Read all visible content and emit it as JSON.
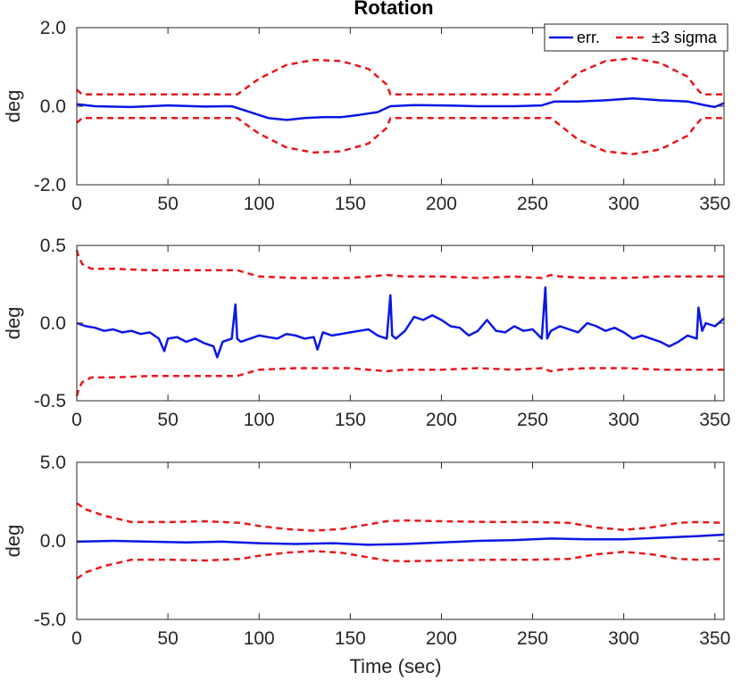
{
  "chart_data": {
    "type": "line",
    "title": "Rotation",
    "xlabel": "Time (sec)",
    "colors": {
      "err": "#0a17e6",
      "sigma": "#e8171c",
      "axis": "#262626"
    },
    "legend": {
      "placement": "top-right",
      "entries": [
        "err.",
        "±3 sigma"
      ]
    },
    "xticks": [
      "0",
      "50",
      "100",
      "150",
      "200",
      "250",
      "300",
      "350"
    ],
    "xtick_values": [
      0,
      50,
      100,
      150,
      200,
      250,
      300,
      350
    ],
    "xlim": [
      0,
      355
    ],
    "panels": [
      {
        "ylabel": "deg",
        "ylim": [
          -2,
          2
        ],
        "yticks": [
          "-2.0",
          "0.0",
          "2.0"
        ],
        "ytick_values": [
          -2,
          0,
          2
        ],
        "series": [
          {
            "name": "err.",
            "style": "solid",
            "x": [
              0,
              10,
              30,
              50,
              70,
              85,
              95,
              105,
              115,
              125,
              135,
              145,
              155,
              165,
              172,
              185,
              200,
              220,
              240,
              255,
              262,
              275,
              290,
              305,
              320,
              335,
              345,
              350,
              355
            ],
            "y": [
              0.05,
              0.0,
              -0.02,
              0.02,
              -0.01,
              0.0,
              -0.15,
              -0.3,
              -0.35,
              -0.3,
              -0.28,
              -0.28,
              -0.22,
              -0.15,
              0.0,
              0.03,
              0.02,
              0.0,
              0.0,
              0.02,
              0.12,
              0.12,
              0.15,
              0.2,
              0.15,
              0.12,
              0.02,
              -0.02,
              0.08
            ]
          },
          {
            "name": "+3 sigma",
            "style": "dashed",
            "x": [
              0,
              3,
              10,
              40,
              60,
              88,
              100,
              115,
              130,
              145,
              160,
              170,
              172,
              200,
              240,
              260,
              275,
              290,
              305,
              320,
              335,
              340,
              343,
              355
            ],
            "y": [
              0.42,
              0.3,
              0.3,
              0.3,
              0.3,
              0.3,
              0.7,
              1.05,
              1.18,
              1.15,
              0.95,
              0.55,
              0.3,
              0.3,
              0.3,
              0.3,
              0.85,
              1.15,
              1.22,
              1.1,
              0.75,
              0.45,
              0.3,
              0.3
            ]
          },
          {
            "name": "-3 sigma",
            "style": "dashed",
            "x": [
              0,
              3,
              10,
              40,
              60,
              88,
              100,
              115,
              130,
              145,
              160,
              170,
              172,
              200,
              240,
              260,
              275,
              290,
              305,
              320,
              335,
              340,
              343,
              355
            ],
            "y": [
              -0.42,
              -0.3,
              -0.3,
              -0.3,
              -0.3,
              -0.3,
              -0.7,
              -1.05,
              -1.18,
              -1.15,
              -0.95,
              -0.55,
              -0.3,
              -0.3,
              -0.3,
              -0.3,
              -0.85,
              -1.15,
              -1.22,
              -1.1,
              -0.75,
              -0.45,
              -0.3,
              -0.3
            ]
          }
        ]
      },
      {
        "ylabel": "deg",
        "ylim": [
          -0.5,
          0.5
        ],
        "yticks": [
          "-0.5",
          "0.0",
          "0.5"
        ],
        "ytick_values": [
          -0.5,
          0,
          0.5
        ],
        "series": [
          {
            "name": "err.",
            "style": "solid",
            "x": [
              0,
              5,
              10,
              15,
              20,
              25,
              30,
              35,
              40,
              45,
              48,
              50,
              55,
              60,
              65,
              70,
              75,
              77,
              80,
              85,
              87,
              88,
              90,
              95,
              100,
              105,
              110,
              115,
              120,
              125,
              130,
              132,
              135,
              140,
              145,
              150,
              155,
              160,
              165,
              170,
              172,
              173,
              175,
              180,
              185,
              190,
              195,
              200,
              205,
              210,
              215,
              220,
              225,
              230,
              235,
              240,
              245,
              250,
              255,
              257,
              258,
              260,
              265,
              270,
              275,
              280,
              285,
              290,
              295,
              300,
              305,
              310,
              315,
              320,
              325,
              330,
              335,
              340,
              341,
              343,
              345,
              350,
              355
            ],
            "y": [
              0.0,
              -0.02,
              -0.03,
              -0.05,
              -0.04,
              -0.06,
              -0.05,
              -0.07,
              -0.06,
              -0.1,
              -0.18,
              -0.1,
              -0.09,
              -0.12,
              -0.1,
              -0.13,
              -0.15,
              -0.22,
              -0.12,
              -0.1,
              0.12,
              -0.1,
              -0.12,
              -0.1,
              -0.08,
              -0.09,
              -0.1,
              -0.07,
              -0.08,
              -0.1,
              -0.09,
              -0.17,
              -0.06,
              -0.08,
              -0.07,
              -0.06,
              -0.05,
              -0.04,
              -0.08,
              -0.1,
              0.18,
              -0.08,
              -0.1,
              -0.05,
              0.04,
              0.02,
              0.05,
              0.02,
              -0.02,
              -0.03,
              -0.08,
              -0.05,
              0.02,
              -0.05,
              -0.06,
              -0.02,
              -0.05,
              -0.04,
              -0.1,
              0.23,
              -0.1,
              -0.05,
              -0.02,
              -0.04,
              -0.06,
              0.0,
              -0.02,
              -0.05,
              -0.03,
              -0.06,
              -0.1,
              -0.08,
              -0.1,
              -0.12,
              -0.15,
              -0.12,
              -0.08,
              -0.1,
              0.1,
              -0.05,
              0.0,
              -0.02,
              0.03
            ]
          },
          {
            "name": "+3 sigma",
            "style": "dashed",
            "x": [
              0,
              1,
              3,
              8,
              20,
              40,
              60,
              80,
              88,
              100,
              120,
              150,
              160,
              170,
              180,
              200,
              220,
              240,
              255,
              260,
              265,
              280,
              300,
              320,
              340,
              355
            ],
            "y": [
              0.47,
              0.43,
              0.38,
              0.35,
              0.35,
              0.34,
              0.34,
              0.34,
              0.34,
              0.3,
              0.29,
              0.29,
              0.3,
              0.31,
              0.3,
              0.3,
              0.29,
              0.3,
              0.29,
              0.31,
              0.3,
              0.29,
              0.29,
              0.3,
              0.3,
              0.3
            ]
          },
          {
            "name": "-3 sigma",
            "style": "dashed",
            "x": [
              0,
              1,
              3,
              8,
              20,
              40,
              60,
              80,
              88,
              100,
              120,
              150,
              160,
              170,
              180,
              200,
              220,
              240,
              255,
              260,
              265,
              280,
              300,
              320,
              340,
              355
            ],
            "y": [
              -0.47,
              -0.43,
              -0.38,
              -0.35,
              -0.35,
              -0.34,
              -0.34,
              -0.34,
              -0.34,
              -0.3,
              -0.29,
              -0.29,
              -0.3,
              -0.31,
              -0.3,
              -0.3,
              -0.29,
              -0.3,
              -0.29,
              -0.31,
              -0.3,
              -0.29,
              -0.29,
              -0.3,
              -0.3,
              -0.3
            ]
          }
        ]
      },
      {
        "ylabel": "deg",
        "ylim": [
          -5,
          5
        ],
        "yticks": [
          "-5.0",
          "0.0",
          "5.0"
        ],
        "ytick_values": [
          -5,
          0,
          5
        ],
        "series": [
          {
            "name": "err.",
            "style": "solid",
            "x": [
              0,
              20,
              40,
              60,
              80,
              100,
              120,
              140,
              160,
              180,
              200,
              220,
              240,
              260,
              280,
              300,
              320,
              340,
              355
            ],
            "y": [
              -0.05,
              0.0,
              -0.05,
              -0.1,
              -0.05,
              -0.15,
              -0.2,
              -0.15,
              -0.25,
              -0.2,
              -0.1,
              0.0,
              0.05,
              0.15,
              0.1,
              0.1,
              0.2,
              0.3,
              0.4
            ]
          },
          {
            "name": "+3 sigma",
            "style": "dashed",
            "x": [
              0,
              5,
              15,
              30,
              50,
              70,
              90,
              100,
              115,
              130,
              145,
              160,
              170,
              180,
              200,
              230,
              250,
              270,
              285,
              300,
              315,
              330,
              340,
              355
            ],
            "y": [
              2.4,
              2.0,
              1.6,
              1.2,
              1.2,
              1.25,
              1.15,
              0.95,
              0.75,
              0.65,
              0.75,
              1.05,
              1.25,
              1.3,
              1.25,
              1.2,
              1.2,
              1.15,
              0.85,
              0.7,
              0.85,
              1.15,
              1.2,
              1.15
            ]
          },
          {
            "name": "-3 sigma",
            "style": "dashed",
            "x": [
              0,
              5,
              15,
              30,
              50,
              70,
              90,
              100,
              115,
              130,
              145,
              160,
              170,
              180,
              200,
              230,
              250,
              270,
              285,
              300,
              315,
              330,
              340,
              355
            ],
            "y": [
              -2.4,
              -2.0,
              -1.6,
              -1.2,
              -1.2,
              -1.25,
              -1.15,
              -0.95,
              -0.75,
              -0.65,
              -0.75,
              -1.05,
              -1.25,
              -1.3,
              -1.25,
              -1.2,
              -1.2,
              -1.15,
              -0.85,
              -0.7,
              -0.85,
              -1.15,
              -1.2,
              -1.15
            ]
          }
        ]
      }
    ]
  }
}
